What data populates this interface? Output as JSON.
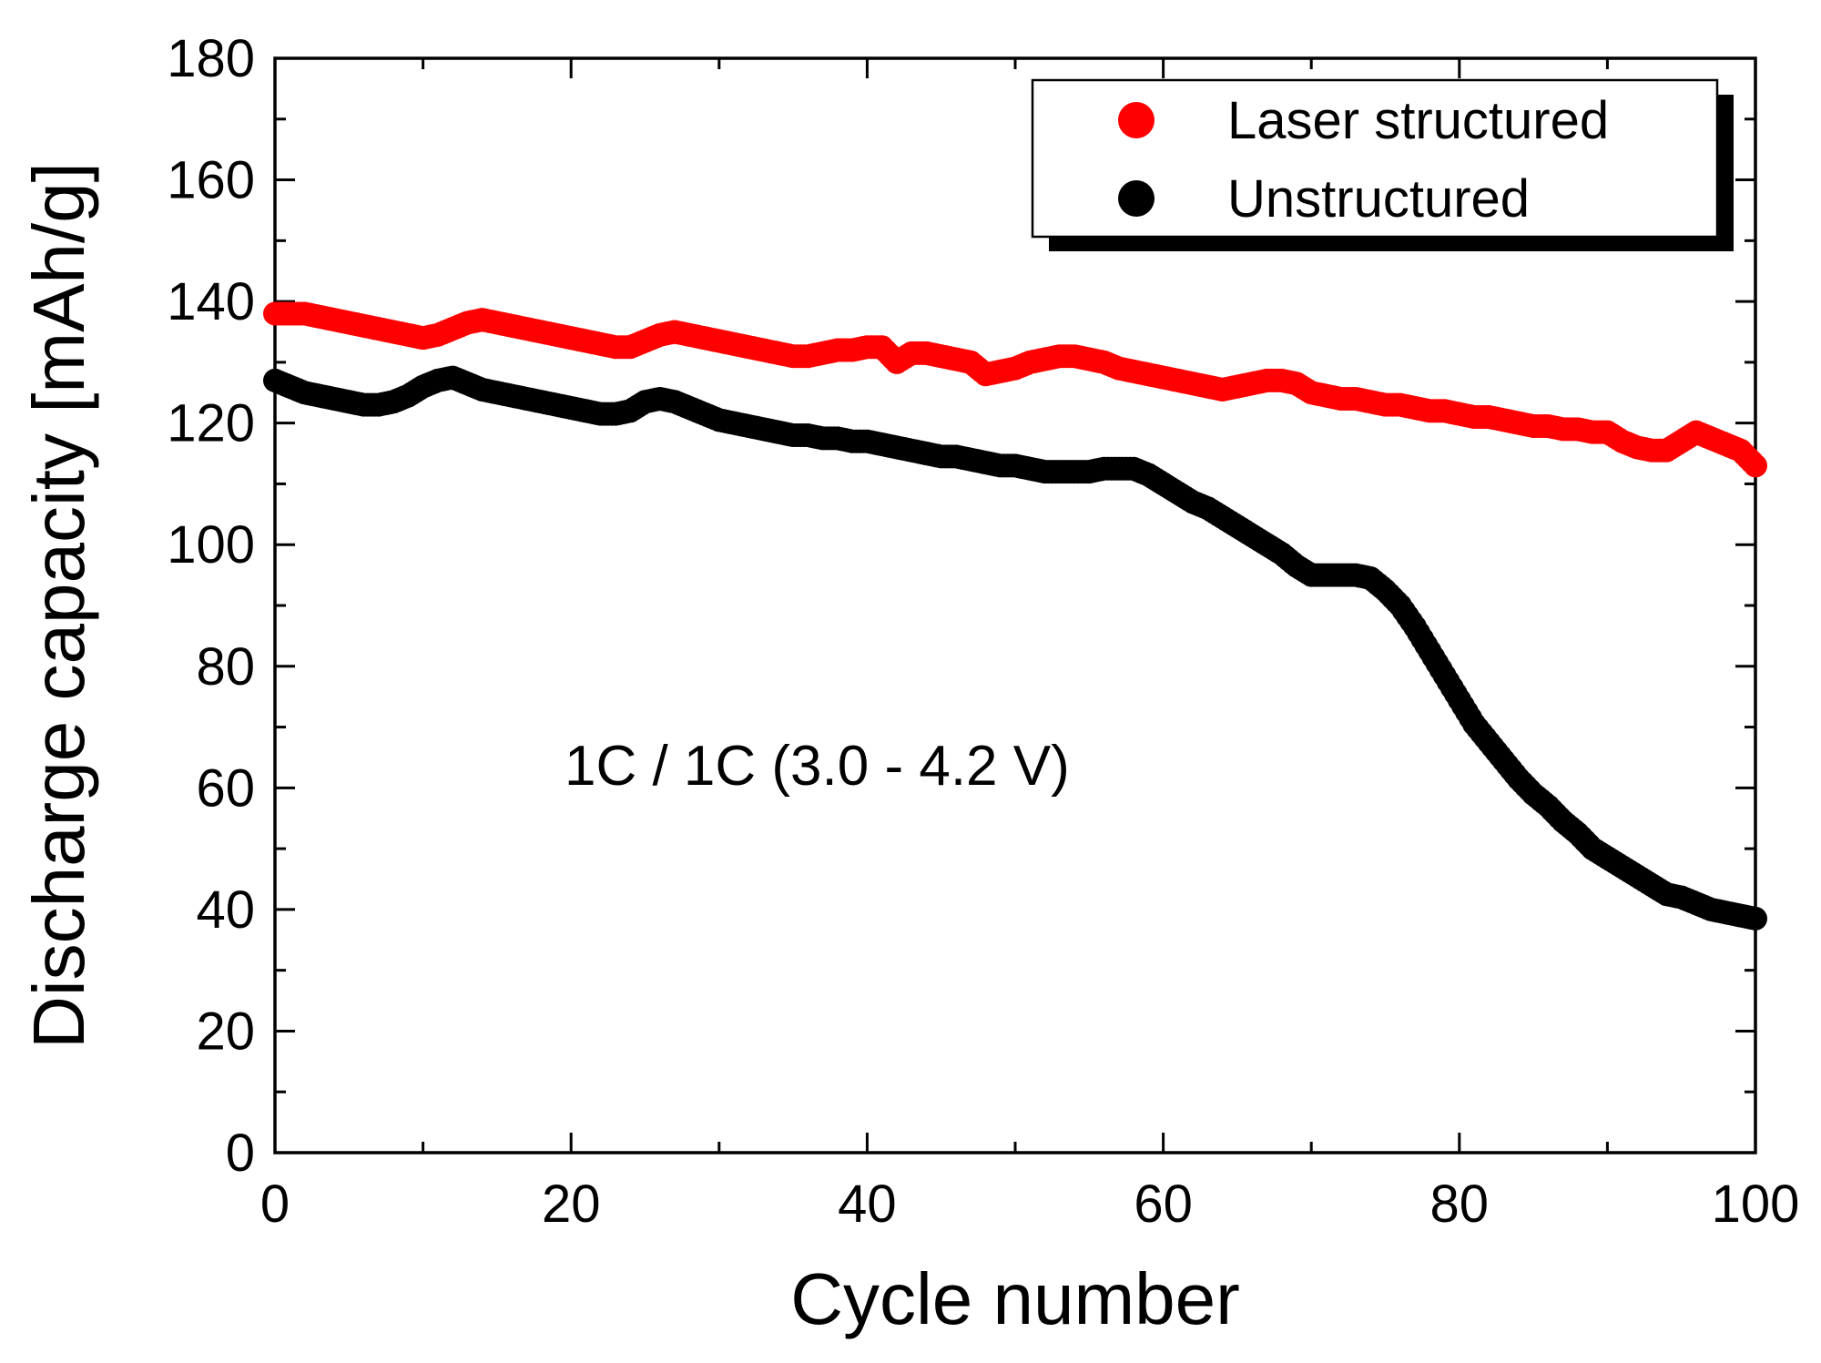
{
  "chart_data": {
    "type": "scatter",
    "title": "",
    "xlabel": "Cycle number",
    "ylabel": "Discharge capacity [mAh/g]",
    "xlim": [
      0,
      100
    ],
    "ylim": [
      0,
      180
    ],
    "xticks": [
      0,
      20,
      40,
      60,
      80,
      100
    ],
    "yticks": [
      0,
      20,
      40,
      60,
      80,
      100,
      120,
      140,
      160,
      180
    ],
    "x_minor_step": 10,
    "y_minor_step": 10,
    "grid": false,
    "legend_position": "top-right",
    "annotation": "1C / 1C (3.0 - 4.2 V)",
    "series": [
      {
        "name": "Laser structured",
        "color": "#ff0000",
        "x": [
          0,
          1,
          2,
          3,
          4,
          5,
          6,
          7,
          8,
          9,
          10,
          11,
          12,
          13,
          14,
          15,
          16,
          17,
          18,
          19,
          20,
          21,
          22,
          23,
          24,
          25,
          26,
          27,
          28,
          29,
          30,
          31,
          32,
          33,
          34,
          35,
          36,
          37,
          38,
          39,
          40,
          41,
          42,
          43,
          44,
          45,
          46,
          47,
          48,
          49,
          50,
          51,
          52,
          53,
          54,
          55,
          56,
          57,
          58,
          59,
          60,
          61,
          62,
          63,
          64,
          65,
          66,
          67,
          68,
          69,
          70,
          71,
          72,
          73,
          74,
          75,
          76,
          77,
          78,
          79,
          80,
          81,
          82,
          83,
          84,
          85,
          86,
          87,
          88,
          89,
          90,
          91,
          92,
          93,
          94,
          95,
          96,
          97,
          98,
          99,
          100
        ],
        "values": [
          138.0,
          138.0,
          138.0,
          137.5,
          137.0,
          136.5,
          136.0,
          135.5,
          135.0,
          134.5,
          134.0,
          134.5,
          135.5,
          136.5,
          137.0,
          136.5,
          136.0,
          135.5,
          135.0,
          134.5,
          134.0,
          133.5,
          133.0,
          132.5,
          132.5,
          133.5,
          134.5,
          135.0,
          134.5,
          134.0,
          133.5,
          133.0,
          132.5,
          132.0,
          131.5,
          131.0,
          131.0,
          131.5,
          132.0,
          132.0,
          132.5,
          132.5,
          130.0,
          131.5,
          131.5,
          131.0,
          130.5,
          130.0,
          128.0,
          128.5,
          129.0,
          130.0,
          130.5,
          131.0,
          131.0,
          130.5,
          130.0,
          129.0,
          128.5,
          128.0,
          127.5,
          127.0,
          126.5,
          126.0,
          125.5,
          126.0,
          126.5,
          127.0,
          127.0,
          126.5,
          125.0,
          124.5,
          124.0,
          124.0,
          123.5,
          123.0,
          123.0,
          122.5,
          122.0,
          122.0,
          121.5,
          121.0,
          121.0,
          120.5,
          120.0,
          119.5,
          119.5,
          119.0,
          119.0,
          118.5,
          118.5,
          117.0,
          116.0,
          115.5,
          115.5,
          117.0,
          118.5,
          117.5,
          116.5,
          115.5,
          113.0
        ]
      },
      {
        "name": "Unstructured",
        "color": "#000000",
        "x": [
          0,
          1,
          2,
          3,
          4,
          5,
          6,
          7,
          8,
          9,
          10,
          11,
          12,
          13,
          14,
          15,
          16,
          17,
          18,
          19,
          20,
          21,
          22,
          23,
          24,
          25,
          26,
          27,
          28,
          29,
          30,
          31,
          32,
          33,
          34,
          35,
          36,
          37,
          38,
          39,
          40,
          41,
          42,
          43,
          44,
          45,
          46,
          47,
          48,
          49,
          50,
          51,
          52,
          53,
          54,
          55,
          56,
          57,
          58,
          59,
          60,
          61,
          62,
          63,
          64,
          65,
          66,
          67,
          68,
          69,
          70,
          71,
          72,
          73,
          74,
          75,
          76,
          77,
          78,
          79,
          80,
          81,
          82,
          83,
          84,
          85,
          86,
          87,
          88,
          89,
          90,
          91,
          92,
          93,
          94,
          95,
          96,
          97,
          98,
          99,
          100
        ],
        "values": [
          127.0,
          126.0,
          125.0,
          124.5,
          124.0,
          123.5,
          123.0,
          123.0,
          123.5,
          124.5,
          126.0,
          127.0,
          127.5,
          126.5,
          125.5,
          125.0,
          124.5,
          124.0,
          123.5,
          123.0,
          122.5,
          122.0,
          121.5,
          121.5,
          122.0,
          123.5,
          124.0,
          123.5,
          122.5,
          121.5,
          120.5,
          120.0,
          119.5,
          119.0,
          118.5,
          118.0,
          118.0,
          117.5,
          117.5,
          117.0,
          117.0,
          116.5,
          116.0,
          115.5,
          115.0,
          114.5,
          114.5,
          114.0,
          113.5,
          113.0,
          113.0,
          112.5,
          112.0,
          112.0,
          112.0,
          112.0,
          112.5,
          112.5,
          112.5,
          111.5,
          110.0,
          108.5,
          107.0,
          106.0,
          104.5,
          103.0,
          101.5,
          100.0,
          98.5,
          96.5,
          95.0,
          95.0,
          95.0,
          95.0,
          94.5,
          92.5,
          90.0,
          86.5,
          82.5,
          78.5,
          74.5,
          70.5,
          67.5,
          64.5,
          61.5,
          59.0,
          57.0,
          54.5,
          52.5,
          50.0,
          48.5,
          47.0,
          45.5,
          44.0,
          42.5,
          42.0,
          41.0,
          40.0,
          39.5,
          39.0,
          38.5
        ]
      }
    ]
  }
}
